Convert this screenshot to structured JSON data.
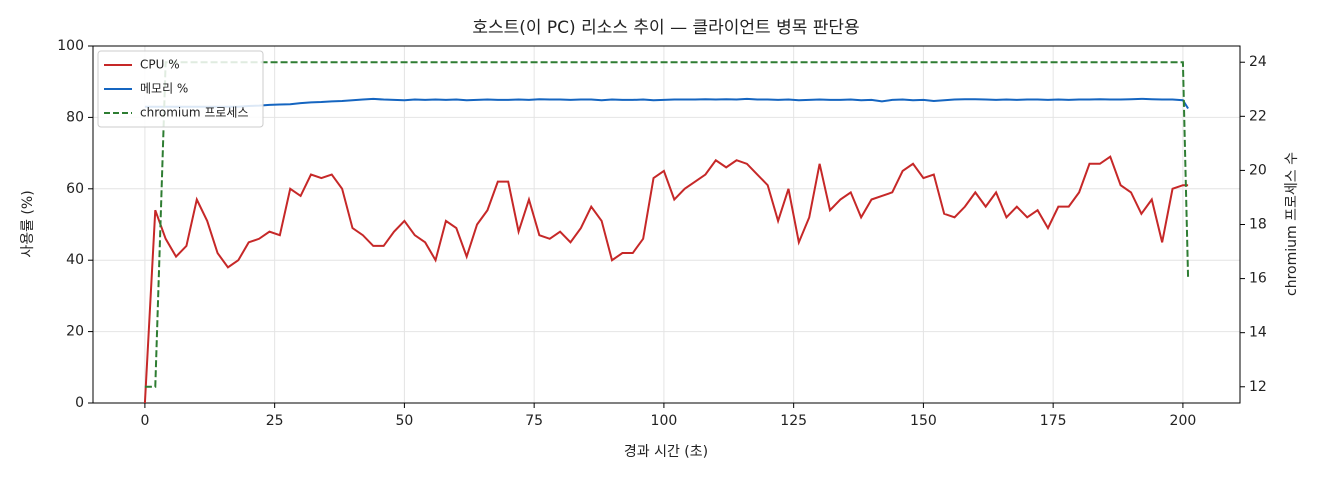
{
  "chart_data": {
    "type": "line",
    "title": "호스트(이 PC) 리소스 추이 — 클라이언트 병목 판단용",
    "xlabel": "경과 시간 (초)",
    "ylabel": "사용률 (%)",
    "y2label": "chromium 프로세스 수",
    "x": [
      0,
      2,
      4,
      6,
      8,
      10,
      12,
      14,
      16,
      18,
      20,
      22,
      24,
      26,
      28,
      30,
      32,
      34,
      36,
      38,
      40,
      42,
      44,
      46,
      48,
      50,
      52,
      54,
      56,
      58,
      60,
      62,
      64,
      66,
      68,
      70,
      72,
      74,
      76,
      78,
      80,
      82,
      84,
      86,
      88,
      90,
      92,
      94,
      96,
      98,
      100,
      102,
      104,
      106,
      108,
      110,
      112,
      114,
      116,
      118,
      120,
      122,
      124,
      126,
      128,
      130,
      132,
      134,
      136,
      138,
      140,
      142,
      144,
      146,
      148,
      150,
      152,
      154,
      156,
      158,
      160,
      162,
      164,
      166,
      168,
      170,
      172,
      174,
      176,
      178,
      180,
      182,
      184,
      186,
      188,
      190,
      192,
      194,
      196,
      198,
      200,
      201
    ],
    "series": [
      {
        "name": "CPU %",
        "color": "#c62828",
        "linestyle": "solid",
        "values": [
          0,
          54,
          46,
          41,
          44,
          57,
          51,
          42,
          38,
          40,
          45,
          46,
          48,
          47,
          60,
          58,
          64,
          63,
          64,
          60,
          49,
          47,
          44,
          44,
          48,
          51,
          47,
          45,
          40,
          51,
          49,
          41,
          50,
          54,
          62,
          62,
          48,
          57,
          47,
          46,
          48,
          45,
          49,
          55,
          51,
          40,
          42,
          42,
          46,
          63,
          65,
          57,
          60,
          62,
          64,
          68,
          66,
          68,
          67,
          64,
          61,
          51,
          60,
          45,
          52,
          67,
          54,
          57,
          59,
          52,
          57,
          58,
          59,
          65,
          67,
          63,
          64,
          53,
          52,
          55,
          59,
          55,
          59,
          52,
          55,
          52,
          54,
          49,
          55,
          55,
          59,
          67,
          67,
          69,
          61,
          59,
          53,
          57,
          45,
          60,
          61,
          61
        ]
      },
      {
        "name": "메모리 %",
        "color": "#1565c0",
        "linestyle": "solid",
        "values": [
          83,
          83,
          83,
          83,
          83,
          83,
          83,
          83,
          83,
          83,
          83.2,
          83.3,
          83.5,
          83.6,
          83.7,
          84,
          84.2,
          84.3,
          84.5,
          84.6,
          84.8,
          85,
          85.2,
          85,
          84.9,
          84.8,
          85,
          84.9,
          85,
          84.9,
          85,
          84.8,
          84.9,
          85,
          84.9,
          84.9,
          85,
          84.9,
          85.1,
          85,
          85,
          84.9,
          85,
          85,
          84.8,
          85,
          84.9,
          84.9,
          85,
          84.8,
          84.9,
          85,
          85,
          85,
          85.1,
          85,
          85.1,
          85,
          85.2,
          85,
          85,
          84.9,
          85,
          84.8,
          84.9,
          85,
          84.9,
          84.9,
          85,
          84.8,
          84.9,
          84.5,
          84.9,
          85,
          84.8,
          84.9,
          84.6,
          84.8,
          85,
          85.1,
          85.1,
          85,
          84.9,
          85,
          84.9,
          85,
          85,
          84.9,
          85,
          84.9,
          85,
          85,
          85.1,
          85,
          85,
          85.1,
          85.2,
          85.1,
          85,
          85,
          84.8,
          82.5
        ]
      },
      {
        "name": "chromium 프로세스",
        "color": "#2e7d32",
        "linestyle": "dashed",
        "axis": "y2",
        "values": [
          12,
          12,
          24,
          24,
          24,
          24,
          24,
          24,
          24,
          24,
          24,
          24,
          24,
          24,
          24,
          24,
          24,
          24,
          24,
          24,
          24,
          24,
          24,
          24,
          24,
          24,
          24,
          24,
          24,
          24,
          24,
          24,
          24,
          24,
          24,
          24,
          24,
          24,
          24,
          24,
          24,
          24,
          24,
          24,
          24,
          24,
          24,
          24,
          24,
          24,
          24,
          24,
          24,
          24,
          24,
          24,
          24,
          24,
          24,
          24,
          24,
          24,
          24,
          24,
          24,
          24,
          24,
          24,
          24,
          24,
          24,
          24,
          24,
          24,
          24,
          24,
          24,
          24,
          24,
          24,
          24,
          24,
          24,
          24,
          24,
          24,
          24,
          24,
          24,
          24,
          24,
          24,
          24,
          24,
          24,
          24,
          24,
          24,
          24,
          24,
          24,
          16
        ]
      }
    ],
    "xlim": [
      -10,
      211
    ],
    "xticks": [
      0,
      25,
      50,
      75,
      100,
      125,
      150,
      175,
      200
    ],
    "ylim": [
      0,
      100
    ],
    "yticks": [
      0,
      20,
      40,
      60,
      80,
      100
    ],
    "y2lim": [
      11.4,
      24.6
    ],
    "y2ticks": [
      12,
      14,
      16,
      18,
      20,
      22,
      24
    ],
    "grid": true,
    "legend": "upper left"
  }
}
